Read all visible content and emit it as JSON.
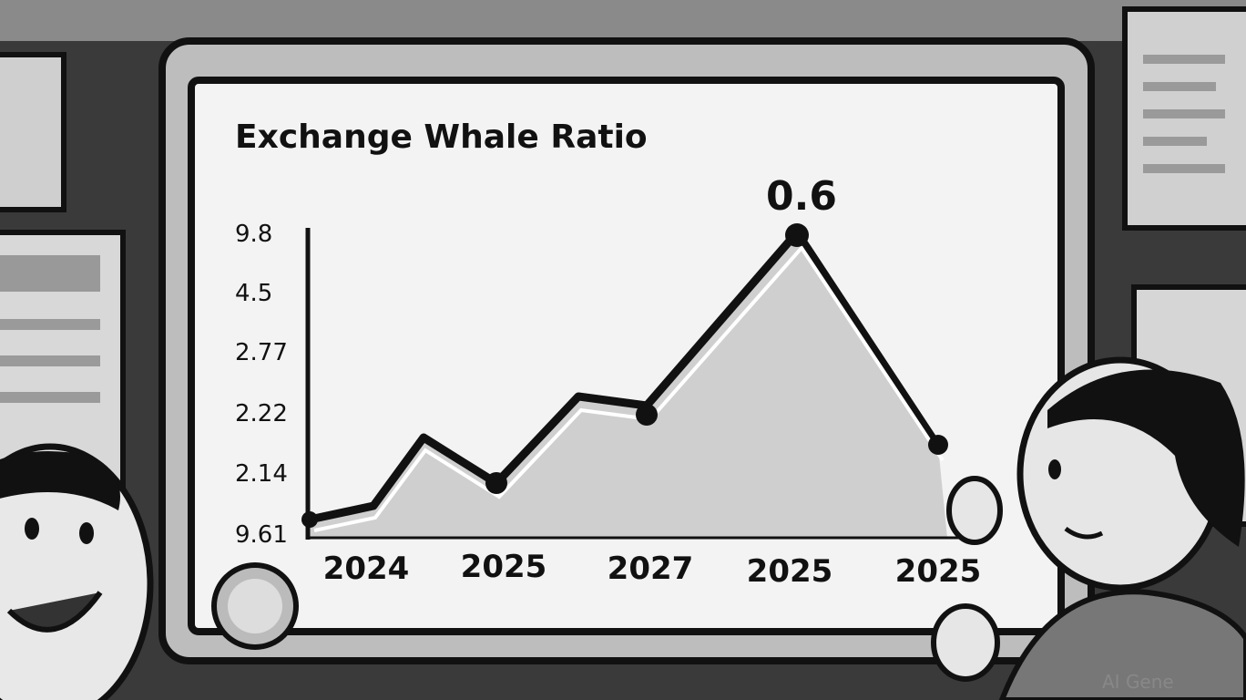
{
  "screen": {
    "title": "Exchange Whale Ratio",
    "annotation": "0.6",
    "y_labels": [
      "9.8",
      "4.5",
      "2.77",
      "2.22",
      "2.14",
      "9.61"
    ],
    "x_labels": [
      "2024",
      "2025",
      "2027",
      "2025",
      "2025"
    ]
  },
  "watermark": "AI Gene"
}
